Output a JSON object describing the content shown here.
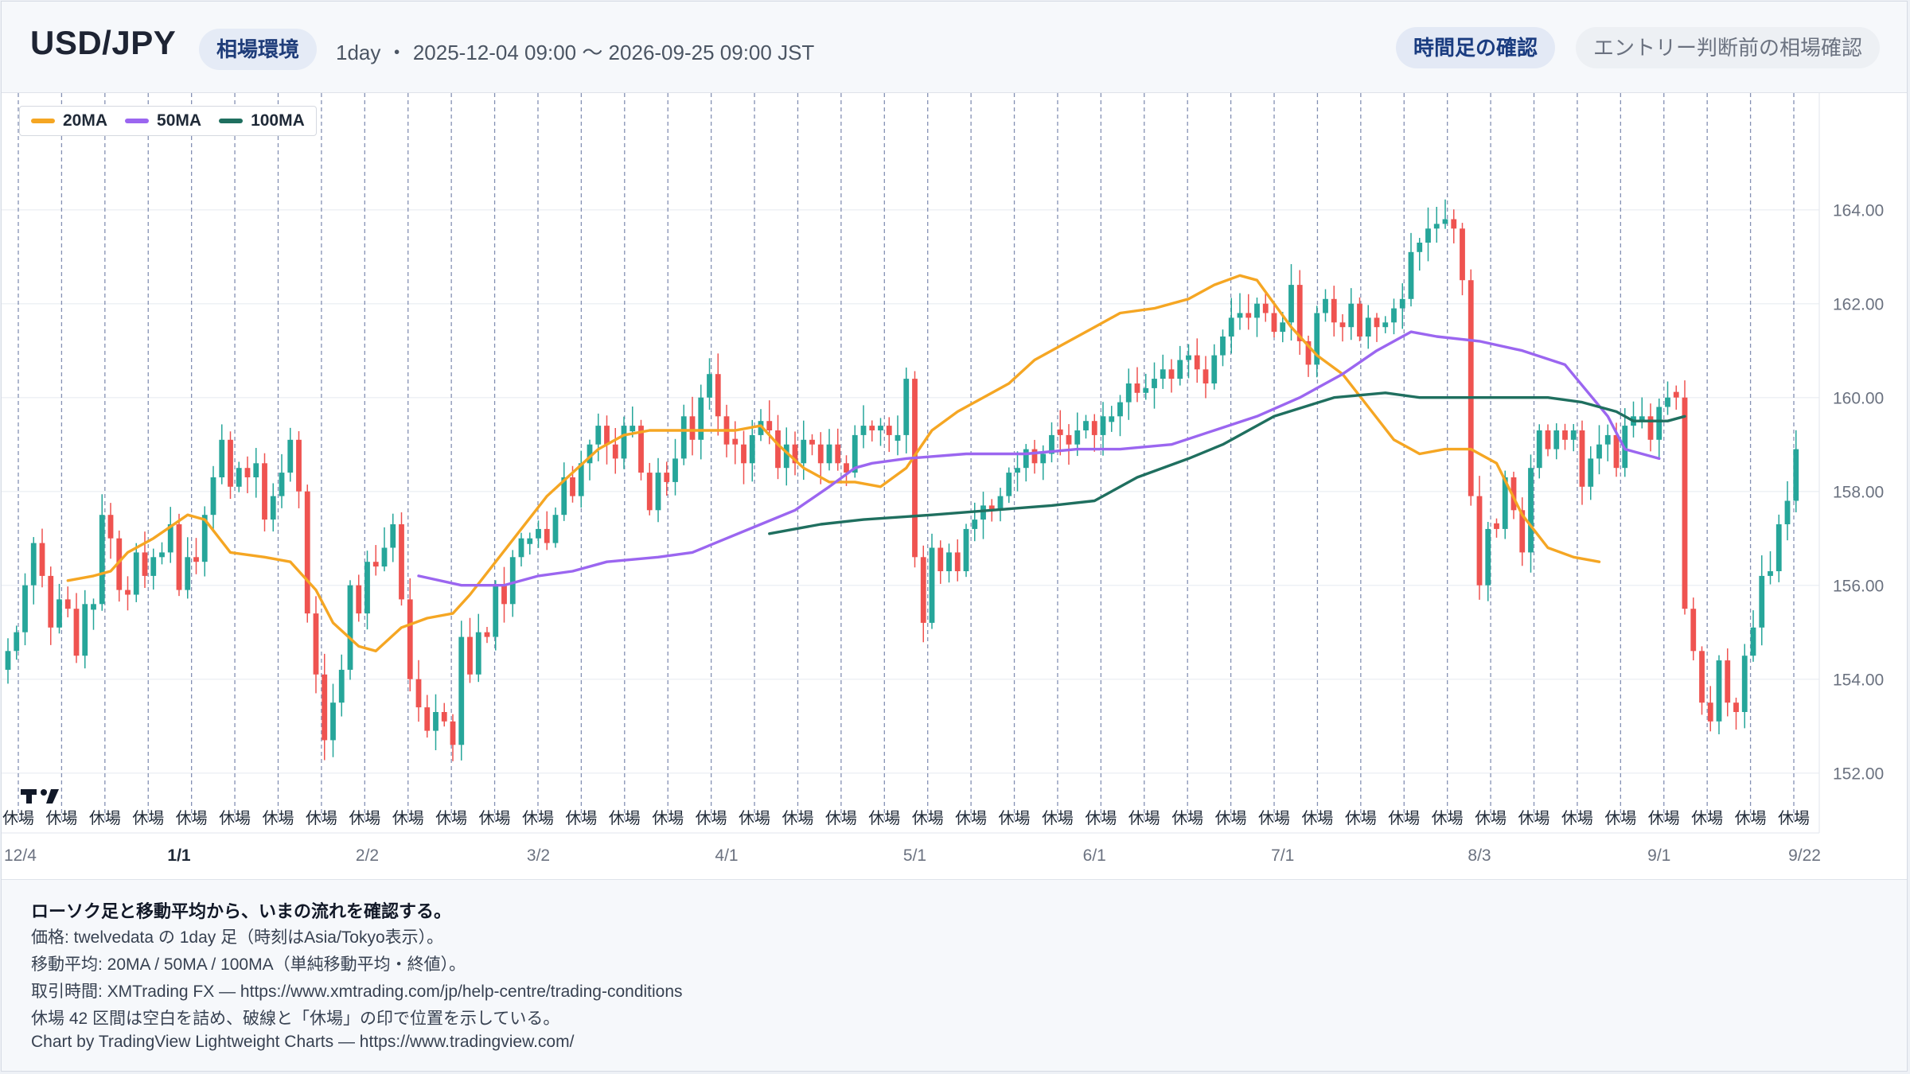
{
  "header": {
    "symbol": "USD/JPY",
    "env_label": "相場環境",
    "range_text": "1day ・ 2025-12-04 09:00 〜 2026-09-25 09:00 JST",
    "timeframe_button": "時間足の確認",
    "entry_button": "エントリー判断前の相場確認"
  },
  "legend": [
    {
      "label": "20MA",
      "color": "#f5a623"
    },
    {
      "label": "50MA",
      "color": "#9b66f0"
    },
    {
      "label": "100MA",
      "color": "#1f6f5f"
    }
  ],
  "footer": {
    "title": "ローソク足と移動平均から、いまの流れを確認する。",
    "line1": "価格: twelvedata の 1day 足（時刻はAsia/Tokyo表示）。",
    "line2": "移動平均: 20MA / 50MA / 100MA（単純移動平均・終値）。",
    "line3": "取引時間: XMTrading FX — https://www.xmtrading.com/jp/help-centre/trading-conditions",
    "line4": "休場 42 区間は空白を詰め、破線と「休場」の印で位置を示している。",
    "line5": "Chart by TradingView Lightweight Charts — https://www.tradingview.com/"
  },
  "colors": {
    "up": "#26a69a",
    "down": "#ef5350",
    "ma20": "#f5a623",
    "ma50": "#9b66f0",
    "ma100": "#1f6f5f",
    "break_line": "#5b6b9a",
    "brand": "#1f3d7a"
  },
  "chart_data": {
    "type": "candlestick",
    "timeframe": "1day",
    "ylim": [
      151.0,
      165.5
    ],
    "y_ticks": [
      "164.00",
      "162.00",
      "160.00",
      "158.00",
      "156.00",
      "154.00",
      "152.00"
    ],
    "x_ticks": [
      "12/4",
      "1/1",
      "2/2",
      "3/2",
      "4/1",
      "5/1",
      "6/1",
      "7/1",
      "8/3",
      "9/1",
      "9/22"
    ],
    "x_tick_bars": [
      0,
      20,
      42,
      62,
      84,
      106,
      127,
      149,
      172,
      193,
      210
    ],
    "break_marker_label": "休場",
    "break_count": 42,
    "bars": 212,
    "closes": [
      154.6,
      155.0,
      156.0,
      156.9,
      156.2,
      155.1,
      155.7,
      155.5,
      154.5,
      155.6,
      155.6,
      157.5,
      157.0,
      155.9,
      155.8,
      156.7,
      156.2,
      156.6,
      156.7,
      157.3,
      155.9,
      156.6,
      156.5,
      157.5,
      158.3,
      159.1,
      158.1,
      158.5,
      158.3,
      158.6,
      157.4,
      157.9,
      158.4,
      159.1,
      158.0,
      155.4,
      154.1,
      152.7,
      153.5,
      154.2,
      156.0,
      155.4,
      156.5,
      156.4,
      156.8,
      157.3,
      155.7,
      154.0,
      153.4,
      152.9,
      153.3,
      153.1,
      152.6,
      154.9,
      154.1,
      155.0,
      154.9,
      156.0,
      155.6,
      156.6,
      157.0,
      157.0,
      157.2,
      156.9,
      157.5,
      158.3,
      157.9,
      158.6,
      159.0,
      159.4,
      159.0,
      158.7,
      159.4,
      159.4,
      158.4,
      157.6,
      158.4,
      158.2,
      158.7,
      159.6,
      159.1,
      160.0,
      160.5,
      159.6,
      159.0,
      159.0,
      158.6,
      159.2,
      159.5,
      159.3,
      158.5,
      159.0,
      158.6,
      159.1,
      159.0,
      158.6,
      159.0,
      158.6,
      158.4,
      159.2,
      159.4,
      159.3,
      159.4,
      159.2,
      159.2,
      160.4,
      156.6,
      155.2,
      156.8,
      156.3,
      156.7,
      156.3,
      157.2,
      157.4,
      157.7,
      157.6,
      157.9,
      158.4,
      158.5,
      158.9,
      158.6,
      158.8,
      159.2,
      159.2,
      159.0,
      159.3,
      159.5,
      159.2,
      159.6,
      159.6,
      159.9,
      160.3,
      160.1,
      160.2,
      160.4,
      160.6,
      160.4,
      160.8,
      160.9,
      160.6,
      160.3,
      160.9,
      161.3,
      161.7,
      161.8,
      161.7,
      162.0,
      161.8,
      161.4,
      161.6,
      162.4,
      161.2,
      160.7,
      161.8,
      162.1,
      161.6,
      161.5,
      162.0,
      161.3,
      161.7,
      161.5,
      161.6,
      161.9,
      162.1,
      163.1,
      163.3,
      163.6,
      163.7,
      163.8,
      163.6,
      162.5,
      157.9,
      156.0,
      157.2,
      157.2,
      158.3,
      157.6,
      156.7,
      158.5,
      159.3,
      158.9,
      159.3,
      159.1,
      159.3,
      158.1,
      158.7,
      159.0,
      159.2,
      158.5,
      159.4,
      159.6,
      159.6,
      159.1,
      159.8,
      160.0,
      160.0,
      155.5,
      154.6,
      153.5,
      153.1,
      154.4,
      153.5,
      153.3,
      154.5,
      155.1,
      156.2,
      156.3,
      157.3,
      157.8,
      158.9
    ],
    "ma20": [
      [
        7,
        156.1
      ],
      [
        10,
        156.2
      ],
      [
        12,
        156.3
      ],
      [
        14,
        156.7
      ],
      [
        17,
        157.0
      ],
      [
        21,
        157.5
      ],
      [
        23,
        157.4
      ],
      [
        26,
        156.7
      ],
      [
        30,
        156.6
      ],
      [
        33,
        156.5
      ],
      [
        36,
        155.9
      ],
      [
        38,
        155.2
      ],
      [
        41,
        154.7
      ],
      [
        43,
        154.6
      ],
      [
        46,
        155.1
      ],
      [
        49,
        155.3
      ],
      [
        52,
        155.4
      ],
      [
        54,
        155.8
      ],
      [
        57,
        156.5
      ],
      [
        60,
        157.2
      ],
      [
        63,
        157.9
      ],
      [
        66,
        158.4
      ],
      [
        69,
        158.9
      ],
      [
        72,
        159.2
      ],
      [
        75,
        159.3
      ],
      [
        79,
        159.3
      ],
      [
        82,
        159.3
      ],
      [
        85,
        159.3
      ],
      [
        88,
        159.4
      ],
      [
        90,
        159.0
      ],
      [
        93,
        158.5
      ],
      [
        96,
        158.2
      ],
      [
        99,
        158.2
      ],
      [
        102,
        158.1
      ],
      [
        105,
        158.5
      ],
      [
        108,
        159.3
      ],
      [
        111,
        159.7
      ],
      [
        114,
        160.0
      ],
      [
        117,
        160.3
      ],
      [
        120,
        160.8
      ],
      [
        123,
        161.1
      ],
      [
        127,
        161.5
      ],
      [
        130,
        161.8
      ],
      [
        134,
        161.9
      ],
      [
        138,
        162.1
      ],
      [
        141,
        162.4
      ],
      [
        144,
        162.6
      ],
      [
        146,
        162.5
      ],
      [
        150,
        161.5
      ],
      [
        153,
        160.9
      ],
      [
        156,
        160.5
      ],
      [
        159,
        159.8
      ],
      [
        162,
        159.1
      ],
      [
        165,
        158.8
      ],
      [
        168,
        158.9
      ],
      [
        171,
        158.9
      ],
      [
        174,
        158.6
      ],
      [
        177,
        157.5
      ],
      [
        180,
        156.8
      ],
      [
        183,
        156.6
      ],
      [
        186,
        156.5
      ]
    ],
    "ma50": [
      [
        48,
        156.2
      ],
      [
        53,
        156.0
      ],
      [
        58,
        156.0
      ],
      [
        62,
        156.2
      ],
      [
        66,
        156.3
      ],
      [
        70,
        156.5
      ],
      [
        76,
        156.6
      ],
      [
        80,
        156.7
      ],
      [
        84,
        157.0
      ],
      [
        88,
        157.3
      ],
      [
        92,
        157.6
      ],
      [
        96,
        158.1
      ],
      [
        99,
        158.5
      ],
      [
        101,
        158.6
      ],
      [
        105,
        158.7
      ],
      [
        112,
        158.8
      ],
      [
        119,
        158.8
      ],
      [
        125,
        158.9
      ],
      [
        130,
        158.9
      ],
      [
        136,
        159.0
      ],
      [
        141,
        159.3
      ],
      [
        146,
        159.6
      ],
      [
        151,
        160.0
      ],
      [
        156,
        160.5
      ],
      [
        160,
        161.0
      ],
      [
        164,
        161.4
      ],
      [
        167,
        161.3
      ],
      [
        172,
        161.2
      ],
      [
        177,
        161.0
      ],
      [
        182,
        160.7
      ],
      [
        187,
        159.6
      ],
      [
        189,
        158.9
      ],
      [
        193,
        158.7
      ]
    ],
    "ma100": [
      [
        89,
        157.1
      ],
      [
        95,
        157.3
      ],
      [
        100,
        157.4
      ],
      [
        108,
        157.5
      ],
      [
        115,
        157.6
      ],
      [
        122,
        157.7
      ],
      [
        127,
        157.8
      ],
      [
        132,
        158.3
      ],
      [
        138,
        158.7
      ],
      [
        142,
        159.0
      ],
      [
        148,
        159.6
      ],
      [
        155,
        160.0
      ],
      [
        161,
        160.1
      ],
      [
        165,
        160.0
      ],
      [
        170,
        160.0
      ],
      [
        175,
        160.0
      ],
      [
        180,
        160.0
      ],
      [
        184,
        159.9
      ],
      [
        188,
        159.7
      ],
      [
        190,
        159.5
      ],
      [
        194,
        159.5
      ],
      [
        196,
        159.6
      ]
    ]
  }
}
